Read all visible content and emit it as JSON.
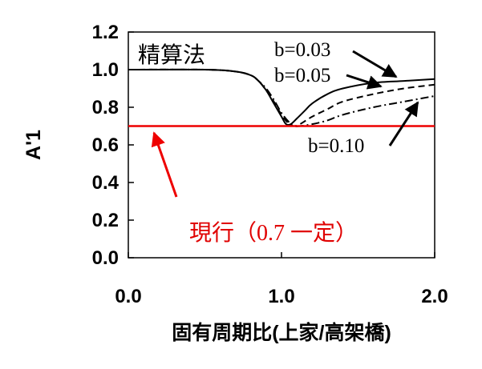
{
  "chart_data": {
    "type": "line",
    "xlabel": "固有周期比(上家/高架橋)",
    "ylabel": "A'1",
    "xlim": [
      0.0,
      2.0
    ],
    "ylim": [
      0.0,
      1.2
    ],
    "x_ticks": [
      "0.0",
      "1.0",
      "2.0"
    ],
    "y_ticks": [
      "0.0",
      "0.2",
      "0.4",
      "0.6",
      "0.8",
      "1.0",
      "1.2"
    ],
    "grid": false,
    "annotations": {
      "method": "精算法",
      "current": "現行（0.7 一定）"
    },
    "series": [
      {
        "name": "b=0.03",
        "style": "solid",
        "color": "#000000",
        "x": [
          0.0,
          0.5,
          0.7,
          0.8,
          0.85,
          0.9,
          0.95,
          1.0,
          1.03,
          1.06,
          1.1,
          1.15,
          1.2,
          1.3,
          1.4,
          1.6,
          1.8,
          2.0
        ],
        "y": [
          1.0,
          1.0,
          0.99,
          0.97,
          0.94,
          0.89,
          0.82,
          0.75,
          0.71,
          0.71,
          0.74,
          0.78,
          0.82,
          0.87,
          0.9,
          0.93,
          0.94,
          0.95
        ]
      },
      {
        "name": "b=0.05",
        "style": "dashed",
        "color": "#000000",
        "x": [
          0.0,
          0.5,
          0.7,
          0.8,
          0.85,
          0.9,
          0.95,
          1.0,
          1.05,
          1.08,
          1.12,
          1.2,
          1.3,
          1.4,
          1.6,
          1.8,
          2.0
        ],
        "y": [
          1.0,
          1.0,
          0.99,
          0.97,
          0.94,
          0.89,
          0.83,
          0.76,
          0.71,
          0.7,
          0.71,
          0.75,
          0.79,
          0.83,
          0.87,
          0.9,
          0.92
        ]
      },
      {
        "name": "b=0.10",
        "style": "dash-dot",
        "color": "#000000",
        "x": [
          0.0,
          0.5,
          0.7,
          0.8,
          0.85,
          0.9,
          0.95,
          1.0,
          1.05,
          1.08,
          1.12,
          1.2,
          1.3,
          1.4,
          1.6,
          1.8,
          2.0
        ],
        "y": [
          1.0,
          1.0,
          0.99,
          0.97,
          0.94,
          0.9,
          0.84,
          0.77,
          0.72,
          0.7,
          0.7,
          0.71,
          0.73,
          0.76,
          0.8,
          0.83,
          0.86
        ]
      },
      {
        "name": "現行",
        "style": "solid",
        "color": "#ee0000",
        "x": [
          0.0,
          2.0
        ],
        "y": [
          0.7,
          0.7
        ]
      }
    ]
  }
}
